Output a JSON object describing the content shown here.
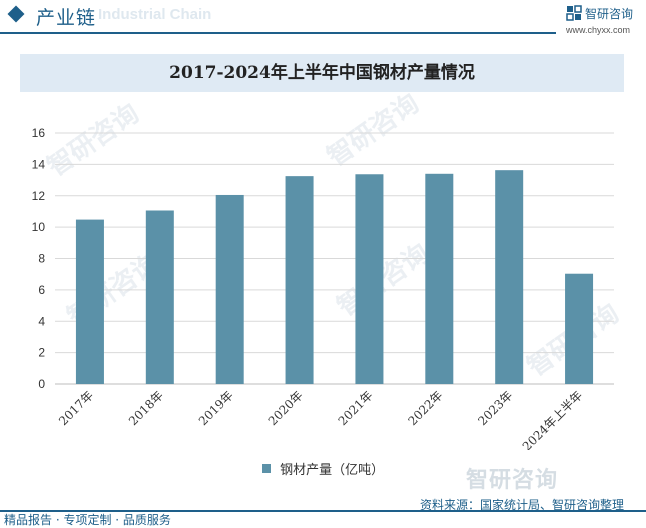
{
  "header": {
    "title": "产业链",
    "ghost_text": "Industrial Chain"
  },
  "brand": {
    "name": "智研咨询",
    "url": "www.chyxx.com"
  },
  "chart_data": {
    "type": "bar",
    "title": "2017-2024年上半年中国钢材产量情况",
    "categories": [
      "2017年",
      "2018年",
      "2019年",
      "2020年",
      "2021年",
      "2022年",
      "2023年",
      "2024年上半年"
    ],
    "series": [
      {
        "name": "钢材产量（亿吨）",
        "values": [
          10.48,
          11.06,
          12.05,
          13.25,
          13.37,
          13.4,
          13.63,
          7.03
        ],
        "color": "#5b91a8"
      }
    ],
    "ylim": [
      0,
      16
    ],
    "yticks": [
      0,
      2,
      4,
      6,
      8,
      10,
      12,
      14,
      16
    ],
    "grid": true,
    "legend_position": "bottom"
  },
  "watermark": "智研咨询",
  "footer": {
    "brand": "智研咨询",
    "source": "资料来源：国家统计局、智研咨询整理",
    "left": "精品报告 · 专项定制 · 品质服务"
  },
  "colors": {
    "accent": "#1e5f8a",
    "bar": "#5b91a8",
    "title_band": "#dfeaf4"
  }
}
